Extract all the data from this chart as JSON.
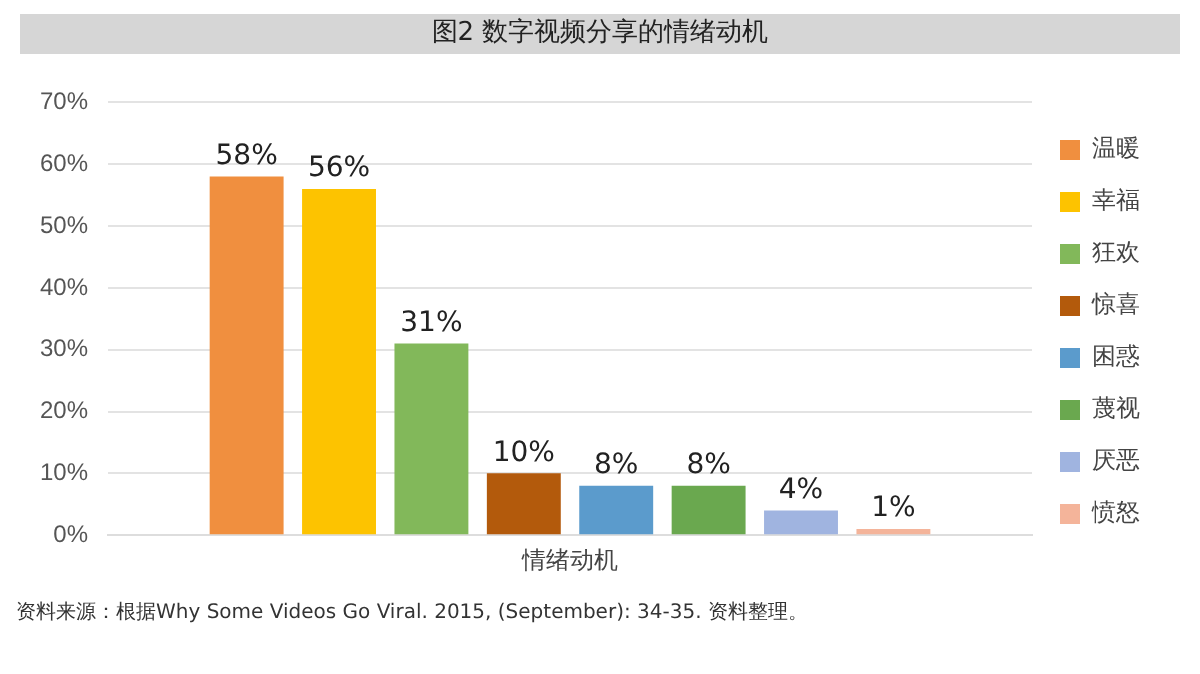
{
  "chart_data": {
    "type": "bar",
    "title": "图2  数字视频分享的情绪动机",
    "categories": [
      "情绪动机"
    ],
    "series": [
      {
        "name": "温暖",
        "color": "#f08f3f",
        "values": [
          58
        ],
        "value_labels": [
          "58%"
        ]
      },
      {
        "name": "幸福",
        "color": "#fdc300",
        "values": [
          56
        ],
        "value_labels": [
          "56%"
        ]
      },
      {
        "name": "狂欢",
        "color": "#82b85a",
        "values": [
          31
        ],
        "value_labels": [
          "31%"
        ]
      },
      {
        "name": "惊喜",
        "color": "#b35a0c",
        "values": [
          10
        ],
        "value_labels": [
          "10%"
        ]
      },
      {
        "name": "困惑",
        "color": "#5b9bcc",
        "values": [
          8
        ],
        "value_labels": [
          "8%"
        ]
      },
      {
        "name": "蔑视",
        "color": "#6aa84f",
        "values": [
          8
        ],
        "value_labels": [
          "8%"
        ]
      },
      {
        "name": "厌恶",
        "color": "#a0b4e0",
        "values": [
          4
        ],
        "value_labels": [
          "4%"
        ]
      },
      {
        "name": "愤怒",
        "color": "#f4b49a",
        "values": [
          1
        ],
        "value_labels": [
          "1%"
        ]
      }
    ],
    "ylim": [
      0,
      70
    ],
    "yticks": [
      {
        "value": 0,
        "label": "0%"
      },
      {
        "value": 10,
        "label": "10%"
      },
      {
        "value": 20,
        "label": "20%"
      },
      {
        "value": 30,
        "label": "30%"
      },
      {
        "value": 40,
        "label": "40%"
      },
      {
        "value": 50,
        "label": "50%"
      },
      {
        "value": 60,
        "label": "60%"
      },
      {
        "value": 70,
        "label": "70%"
      }
    ],
    "grid": "y",
    "legend": "right",
    "annotations": [
      "资料来源：根据Why Some Videos Go Viral. 2015, (September): 34-35. 资料整理。"
    ]
  }
}
